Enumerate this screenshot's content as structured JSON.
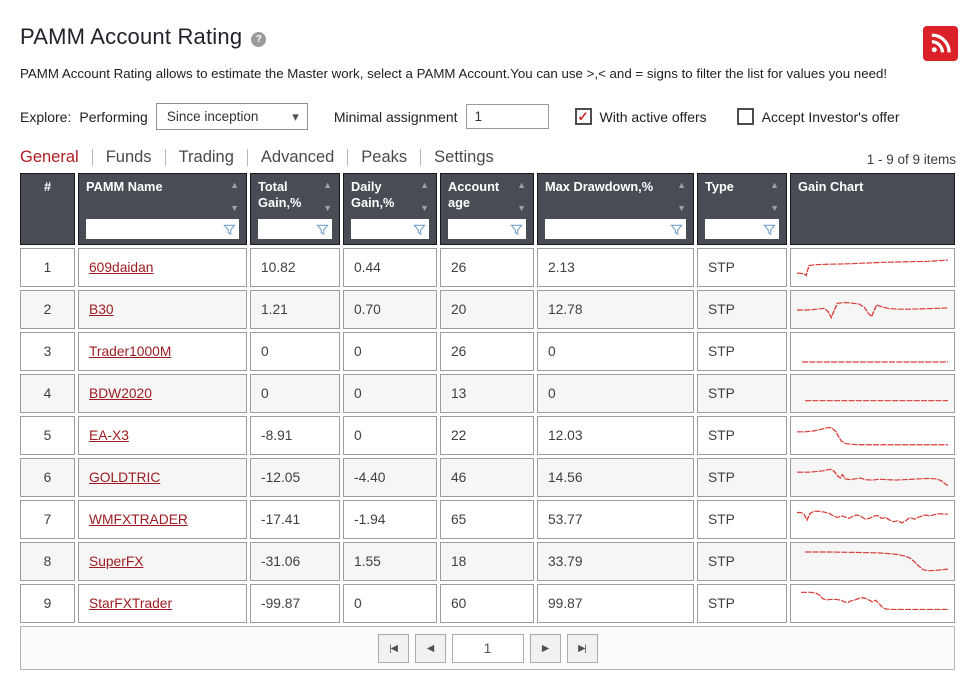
{
  "page": {
    "title": "PAMM Account Rating",
    "help_icon": "?",
    "description": "PAMM Account Rating allows to estimate the Master work, select a PAMM Account.You can use >,< and = signs to filter the list for values you need!"
  },
  "controls": {
    "explore_label": "Explore:",
    "performing_label": "Performing",
    "period_select_value": "Since inception",
    "minimal_assignment_label": "Minimal assignment",
    "minimal_assignment_value": "1",
    "with_active_offers_label": "With active offers",
    "with_active_offers_checked": true,
    "accept_investors_offer_label": "Accept Investor's offer",
    "accept_investors_offer_checked": false
  },
  "tabs": {
    "items": [
      {
        "label": "General",
        "active": true
      },
      {
        "label": "Funds",
        "active": false
      },
      {
        "label": "Trading",
        "active": false
      },
      {
        "label": "Advanced",
        "active": false
      },
      {
        "label": "Peaks",
        "active": false
      },
      {
        "label": "Settings",
        "active": false
      }
    ]
  },
  "items_count": "1 - 9 of 9 items",
  "table": {
    "columns": [
      {
        "key": "rank",
        "label": "#",
        "sortable": false,
        "filterable": false,
        "center": true
      },
      {
        "key": "name",
        "label": "PAMM Name",
        "sortable": true,
        "filterable": true
      },
      {
        "key": "total_gain",
        "label": "Total Gain,%",
        "sortable": true,
        "filterable": true
      },
      {
        "key": "daily_gain",
        "label": "Daily Gain,%",
        "sortable": true,
        "filterable": true
      },
      {
        "key": "account_age",
        "label": "Account age",
        "sortable": true,
        "filterable": true
      },
      {
        "key": "max_drawdown",
        "label": "Max Drawdown,%",
        "sortable": true,
        "filterable": true
      },
      {
        "key": "type",
        "label": "Type",
        "sortable": true,
        "filterable": true
      },
      {
        "key": "chart",
        "label": "Gain Chart",
        "sortable": false,
        "filterable": false
      }
    ],
    "rows": [
      {
        "rank": "1",
        "name": "609daidan",
        "total_gain": "10.82",
        "daily_gain": "0.44",
        "account_age": "26",
        "max_drawdown": "2.13",
        "type": "STP",
        "spark": "0,24 7,25 9,27 12,15 18,14 30,13.5 50,13 70,12 90,11 110,10.5 130,10 150,8.5"
      },
      {
        "rank": "2",
        "name": "B30",
        "total_gain": "1.21",
        "daily_gain": "0.70",
        "account_age": "20",
        "max_drawdown": "12.78",
        "type": "STP",
        "spark": "0,18 10,18 20,17 27,16 31,20 34,27 40,10 48,9 56,10 62,11 67,15 71,22 74,26 79,12 84,14 90,16 100,17 112,17 126,16.5 140,16 150,15.5"
      },
      {
        "rank": "3",
        "name": "Trader1000M",
        "total_gain": "0",
        "daily_gain": "0",
        "account_age": "26",
        "max_drawdown": "0",
        "type": "STP",
        "spark": "5,30 150,30"
      },
      {
        "rank": "4",
        "name": "BDW2020",
        "total_gain": "0",
        "daily_gain": "0",
        "account_age": "13",
        "max_drawdown": "0",
        "type": "STP",
        "spark": "8,26 150,26"
      },
      {
        "rank": "5",
        "name": "EA-X3",
        "total_gain": "-8.91",
        "daily_gain": "0",
        "account_age": "22",
        "max_drawdown": "12.03",
        "type": "STP",
        "spark": "0,13 8,13 16,12 24,10 30,8 34,8 38,12 41,18 44,24 48,27 54,28 62,28.5 150,28.5"
      },
      {
        "rank": "6",
        "name": "GOLDTRIC",
        "total_gain": "-12.05",
        "daily_gain": "-4.40",
        "account_age": "46",
        "max_drawdown": "14.56",
        "type": "STP",
        "spark": "0,11 12,11 22,10 28,9 33,7.5 37,10 40,15 43,18 45,14 48,19 53,20 58,19 63,18 68,20 75,20.5 82,19.5 90,20 98,20.5 106,20 114,19.5 122,19 130,18.5 138,19 143,21 147,25 150,27"
      },
      {
        "rank": "7",
        "name": "WMFXTRADER",
        "total_gain": "-17.41",
        "daily_gain": "-1.94",
        "account_age": "65",
        "max_drawdown": "53.77",
        "type": "STP",
        "spark": "0,9 4,9 7,11 10,18 13,10 17,7.5 22,7.5 27,8.5 32,10 36,13 40,15 44,13 48,14.5 52,16 56,13 60,12 64,14 68,17 72,16 76,13.5 80,12.5 84,16 88,15 92,18 96,20 100,19 104,21.5 108,19 112,15 117,17 122,14 127,12 132,13 140,10.5 150,11"
      },
      {
        "rank": "8",
        "name": "SuperFX",
        "total_gain": "-31.06",
        "daily_gain": "1.55",
        "account_age": "18",
        "max_drawdown": "33.79",
        "type": "STP",
        "spark": "8,6 30,6 60,6.5 80,7 92,8 100,9 106,10.5 112,13 117,18 121,23 125,27 130,28.5 138,28 150,26.5"
      },
      {
        "rank": "9",
        "name": "StarFXTrader",
        "total_gain": "-99.87",
        "daily_gain": "0",
        "account_age": "60",
        "max_drawdown": "99.87",
        "type": "STP",
        "spark": "4,4 14,4 19,5 23,8 26,12 30,13 34,12.5 39,12.5 44,13.5 47,15.5 51,16 54,14 58,13 62,11 65,10.5 69,11.5 72,13.5 75,15.5 78,13.5 81,17 84,21 88,24 95,24.5 150,24.5"
      }
    ]
  },
  "pagination": {
    "first_glyph": "|◀",
    "prev_glyph": "◀",
    "page_value": "1",
    "next_glyph": "▶",
    "last_glyph": "▶|"
  },
  "icons": {
    "sort_up": "▲",
    "sort_down": "▼",
    "select_chevron": "▾",
    "check_mark": "✓"
  },
  "colors": {
    "accent_red": "#b01c20",
    "link_red": "#9e1c21",
    "header_bg": "#484c54",
    "sparkline": "#d93a36",
    "rss_red": "#da2128",
    "check_red": "#cc2127",
    "filter_icon_blue": "#76a3cf"
  }
}
